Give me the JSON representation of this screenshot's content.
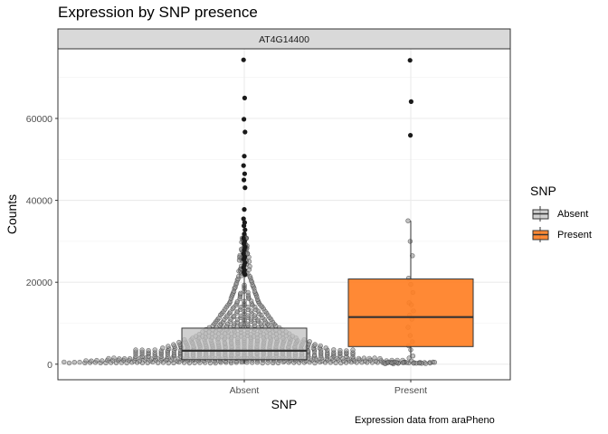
{
  "title": "Expression by SNP presence",
  "caption": "Expression data from araPheno",
  "chart_data": {
    "type": "boxplot",
    "title": "Expression by SNP presence",
    "facet_label": "AT4G14400",
    "xlabel": "SNP",
    "ylabel": "Counts",
    "categories": [
      "Absent",
      "Present"
    ],
    "ylim": [
      -3800,
      77000
    ],
    "yticks": [
      0,
      20000,
      40000,
      60000
    ],
    "ytick_labels": [
      "0",
      "20000",
      "40000",
      "60000"
    ],
    "grid": true,
    "legend": {
      "title": "SNP",
      "position": "right",
      "entries": [
        {
          "label": "Absent",
          "color": "#c0c0c0"
        },
        {
          "label": "Present",
          "color": "#ff7f24"
        }
      ]
    },
    "boxes": [
      {
        "category": "Absent",
        "q1": 1100,
        "median": 3300,
        "q3": 8800,
        "whisker_low": 0,
        "whisker_high": 21500,
        "color": "#c0c0c0"
      },
      {
        "category": "Present",
        "q1": 4300,
        "median": 11500,
        "q3": 20800,
        "whisker_low": 1600,
        "whisker_high": 35000,
        "color": "#ff7f24"
      }
    ],
    "outliers": [
      {
        "category": "Absent",
        "values": [
          74300,
          65000,
          59800,
          56700,
          50800,
          48500,
          46500,
          45000,
          43100,
          37800,
          35500,
          34600,
          33800,
          32800,
          31800,
          30800,
          30000,
          29400,
          28600,
          27900,
          27000,
          26200,
          25600,
          24800,
          24200,
          23600,
          23000,
          22400,
          21900
        ]
      },
      {
        "category": "Present",
        "values": [
          74200,
          64100,
          55900
        ]
      }
    ],
    "point_series": [
      {
        "category": "Absent",
        "description": "individual accessions (jittered beeswarm)"
      },
      {
        "category": "Present",
        "values": [
          35000,
          30000,
          26500,
          21000,
          19500,
          17500,
          15000,
          14500,
          13000,
          12000,
          11000,
          9000,
          7000,
          5500,
          4500,
          3500,
          2000,
          1500,
          800
        ]
      }
    ]
  }
}
